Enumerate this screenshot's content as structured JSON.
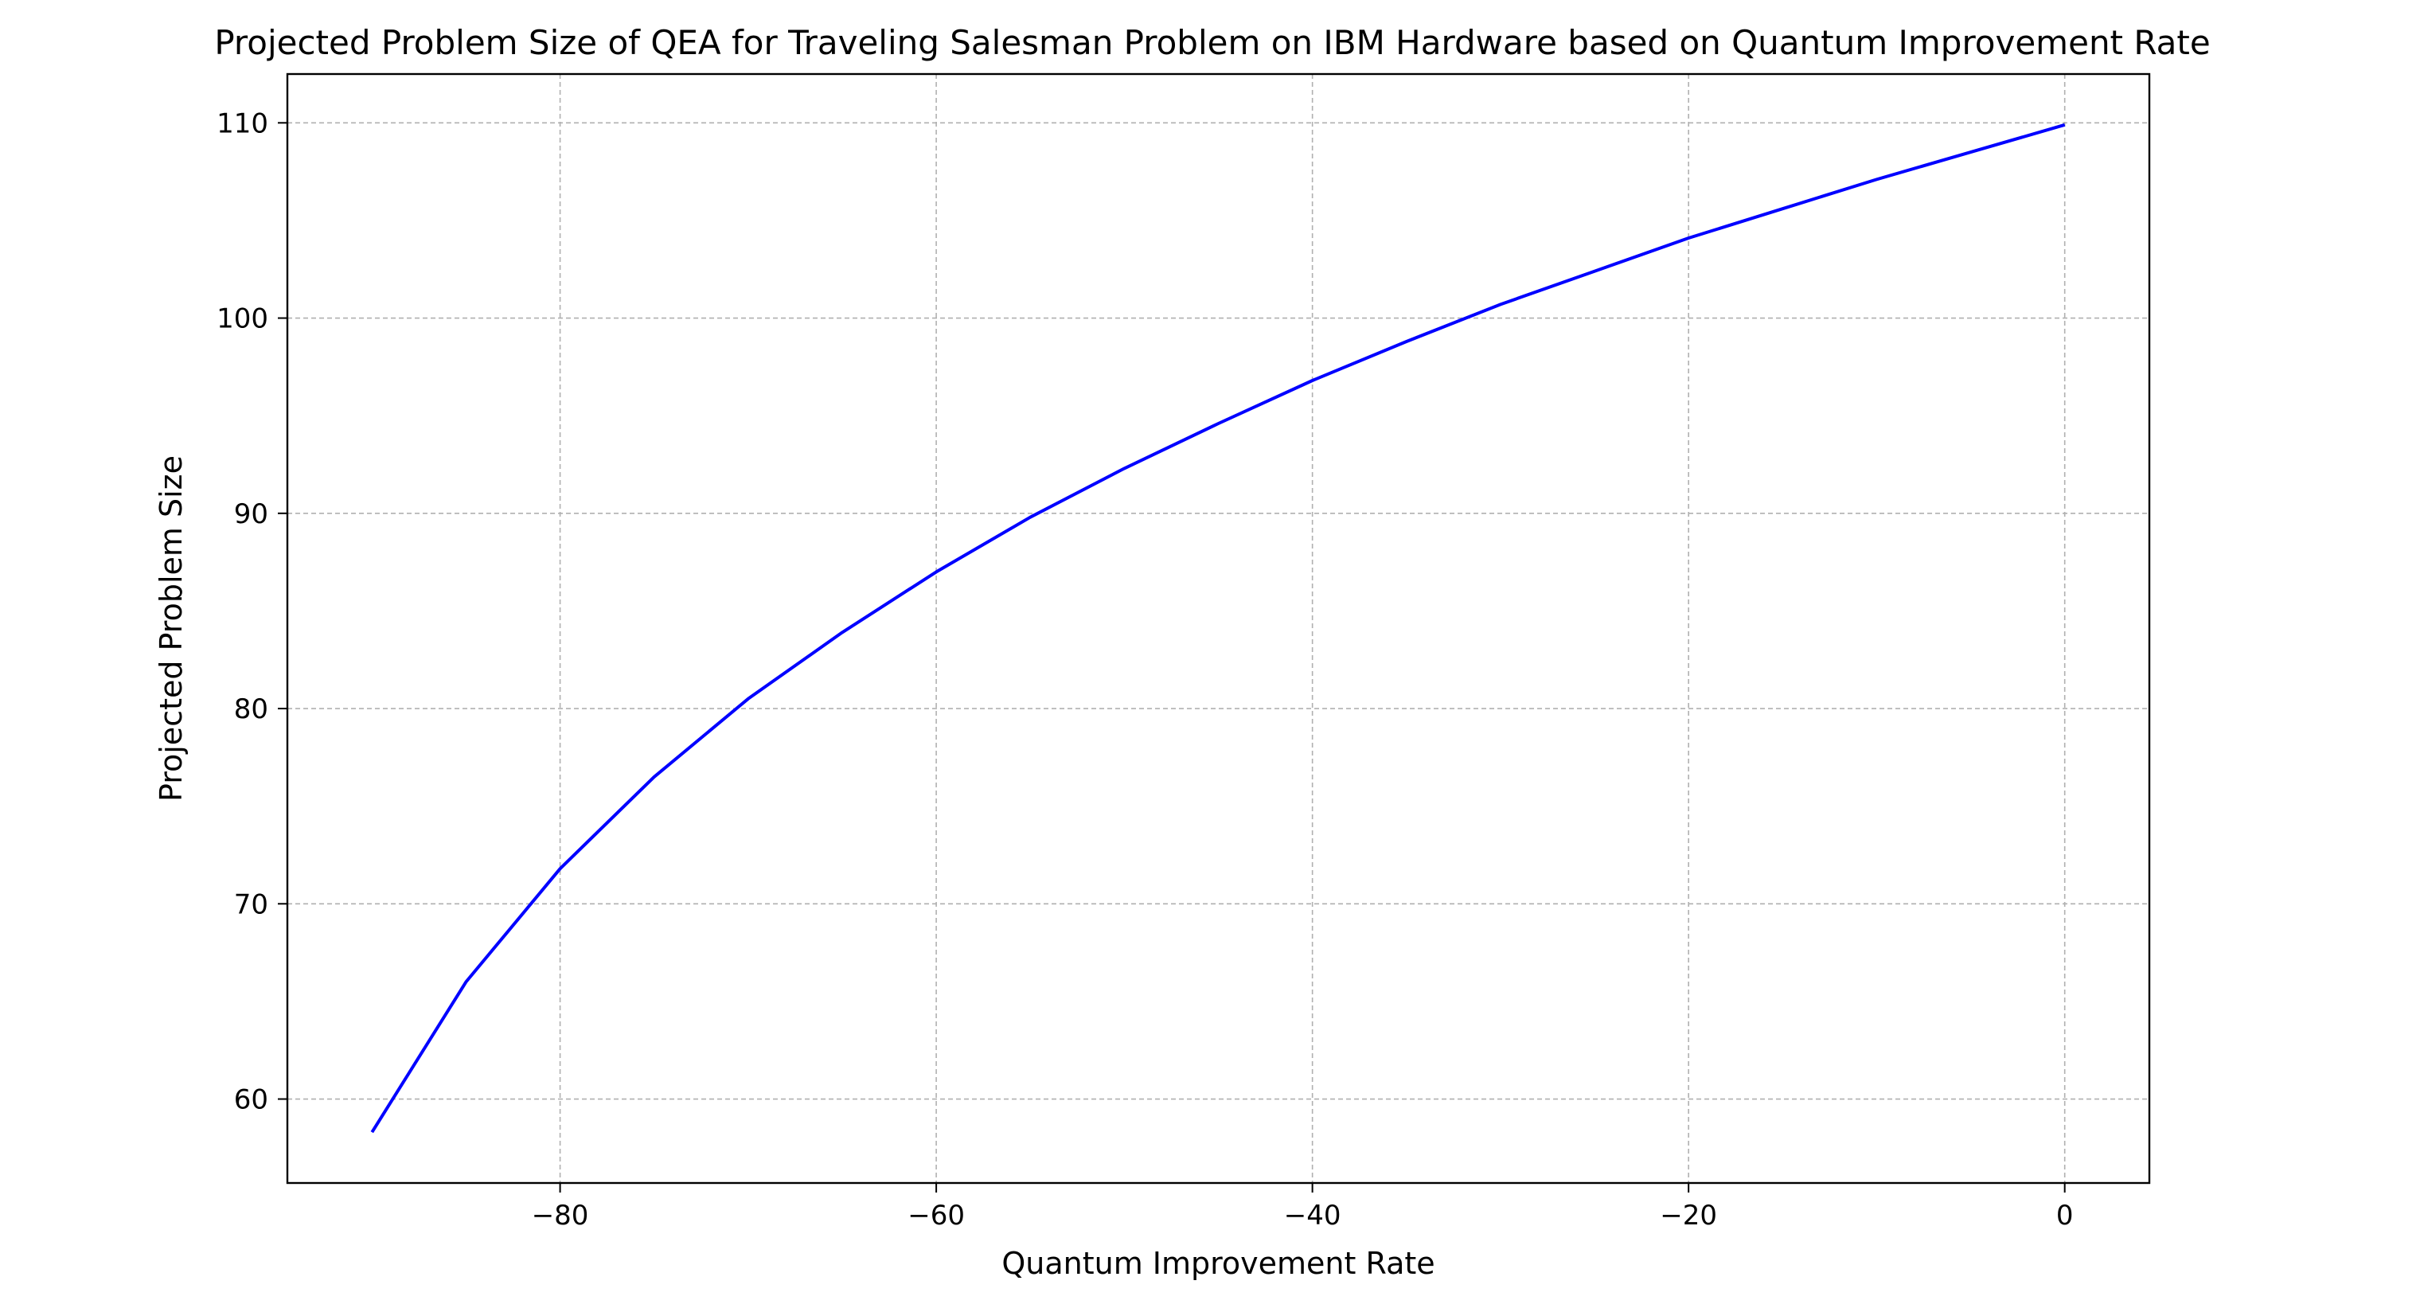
{
  "chart_data": {
    "type": "line",
    "title": "Projected Problem Size of QEA for Traveling Salesman Problem on IBM Hardware based on Quantum Improvement Rate",
    "xlabel": "Quantum Improvement Rate",
    "ylabel": "Projected Problem Size",
    "xlim": [
      -94.5,
      4.5
    ],
    "ylim": [
      55.7,
      112.5
    ],
    "xticks": [
      -80,
      -60,
      -40,
      -20,
      0
    ],
    "xtick_labels": [
      "−80",
      "−60",
      "−40",
      "−20",
      "0"
    ],
    "yticks": [
      60,
      70,
      80,
      90,
      100,
      110
    ],
    "ytick_labels": [
      "60",
      "70",
      "80",
      "90",
      "100",
      "110"
    ],
    "grid": true,
    "series": [
      {
        "color": "#0000ff",
        "x": [
          -90,
          -85,
          -80,
          -75,
          -70,
          -65,
          -60,
          -55,
          -50,
          -45,
          -40,
          -35,
          -30,
          -25,
          -20,
          -15,
          -10,
          -5,
          0
        ],
        "y": [
          58.3,
          66.0,
          71.8,
          76.5,
          80.5,
          83.9,
          87.0,
          89.8,
          92.3,
          94.6,
          96.8,
          98.8,
          100.7,
          102.4,
          104.1,
          105.6,
          107.1,
          108.5,
          109.9
        ]
      }
    ]
  }
}
